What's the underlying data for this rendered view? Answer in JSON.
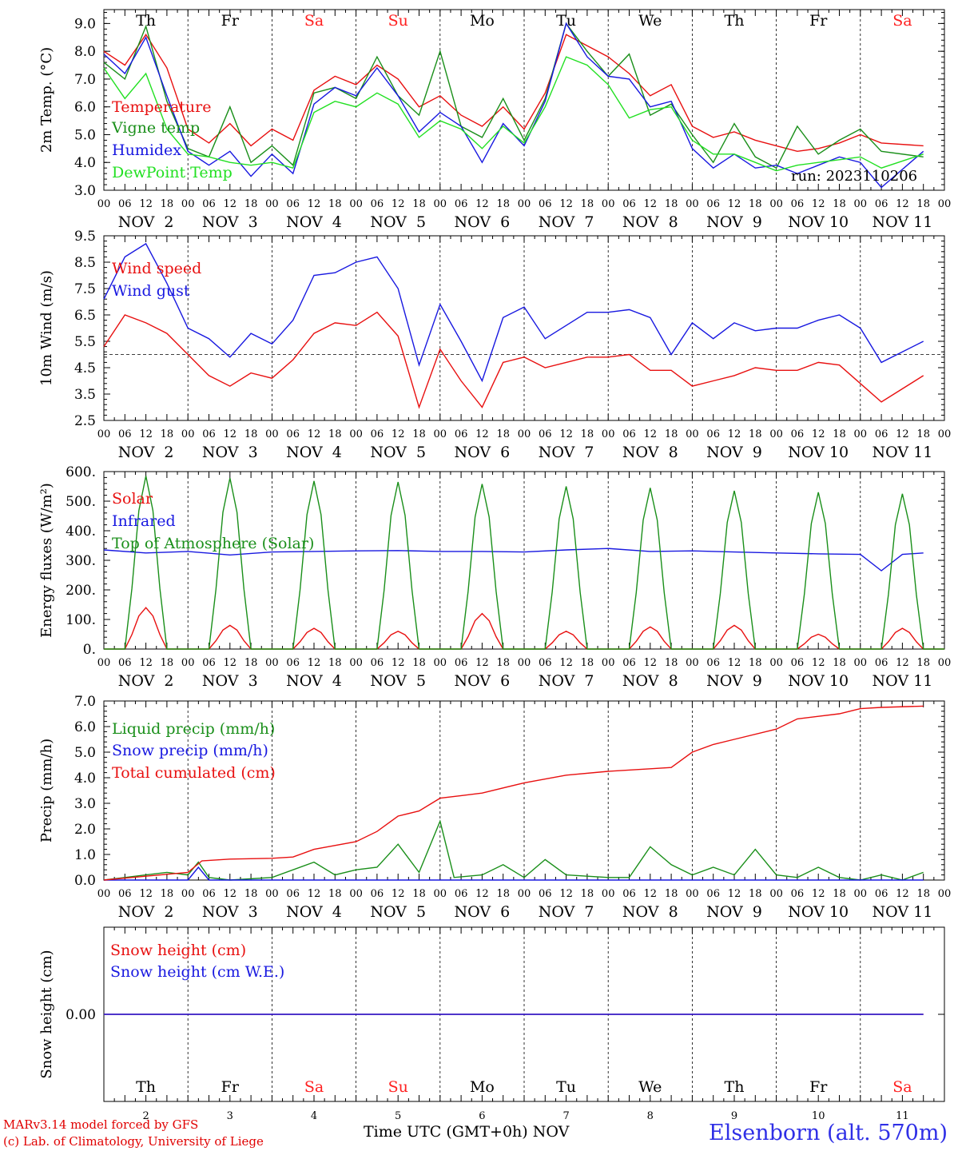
{
  "footer": {
    "model": "MARv3.14 model forced by GFS",
    "lab": "(c) Lab. of Climatology, University of Liege",
    "xlabel": "Time UTC (GMT+0h) NOV",
    "station": "Elsenborn (alt. 570m)"
  },
  "days": {
    "weekdays": [
      "Th",
      "Fr",
      "Sa",
      "Su",
      "Mo",
      "Tu",
      "We",
      "Th",
      "Fr",
      "Sa"
    ],
    "dates": [
      "NOV  2",
      "NOV  3",
      "NOV  4",
      "NOV  5",
      "NOV  6",
      "NOV  7",
      "NOV  8",
      "NOV  9",
      "NOV 10",
      "NOV 11"
    ],
    "daynums": [
      "2",
      "3",
      "4",
      "5",
      "6",
      "7",
      "8",
      "9",
      "10",
      "11"
    ],
    "weekend_color": "#ff2020",
    "hour_ticks": [
      "00",
      "06",
      "12",
      "18"
    ]
  },
  "colors": {
    "red": "#e81010",
    "green": "#1a8f1a",
    "blue": "#1818e0",
    "lightgreen": "#22e022",
    "purple": "#8030a0"
  },
  "chart_data": [
    {
      "type": "line",
      "ylabel": "2m Temp. (°C)",
      "ylim": [
        3.0,
        9.5
      ],
      "yticks": [
        "3.0",
        "4.0",
        "5.0",
        "6.0",
        "7.0",
        "8.0",
        "9.0"
      ],
      "annotation": "run: 2023110206",
      "x_unit": "hours since NOV 2 00 UTC",
      "series": [
        {
          "name": "Temperature",
          "color": "red",
          "x": [
            0,
            6,
            12,
            18,
            24,
            30,
            36,
            42,
            48,
            54,
            60,
            66,
            72,
            78,
            84,
            90,
            96,
            102,
            108,
            114,
            120,
            126,
            132,
            138,
            144,
            150,
            156,
            162,
            168,
            174,
            180,
            186,
            192,
            198,
            204,
            210,
            216,
            222,
            234
          ],
          "y": [
            8.0,
            7.5,
            8.6,
            7.4,
            5.2,
            4.7,
            5.4,
            4.6,
            5.2,
            4.8,
            6.6,
            7.1,
            6.8,
            7.5,
            7.0,
            6.0,
            6.4,
            5.7,
            5.3,
            6.0,
            5.2,
            6.5,
            8.6,
            8.2,
            7.8,
            7.2,
            6.4,
            6.8,
            5.3,
            4.9,
            5.1,
            4.8,
            4.6,
            4.4,
            4.5,
            4.7,
            5.0,
            4.7,
            4.6
          ]
        },
        {
          "name": "Vigne temp",
          "color": "green",
          "x": [
            0,
            6,
            12,
            18,
            24,
            30,
            36,
            42,
            48,
            54,
            60,
            66,
            72,
            78,
            84,
            90,
            96,
            102,
            108,
            114,
            120,
            126,
            132,
            138,
            144,
            150,
            156,
            162,
            168,
            174,
            180,
            186,
            192,
            198,
            204,
            210,
            216,
            222,
            234
          ],
          "y": [
            7.6,
            7.0,
            8.9,
            6.2,
            4.5,
            4.2,
            6.0,
            4.0,
            4.6,
            3.9,
            6.5,
            6.7,
            6.3,
            7.8,
            6.4,
            5.7,
            8.0,
            5.3,
            4.9,
            6.3,
            4.8,
            6.3,
            9.0,
            8.0,
            7.1,
            7.9,
            5.7,
            6.1,
            5.0,
            4.0,
            5.4,
            4.2,
            3.8,
            5.3,
            4.3,
            4.8,
            5.2,
            4.4,
            4.2
          ]
        },
        {
          "name": "Humidex",
          "color": "blue",
          "x": [
            0,
            6,
            12,
            18,
            24,
            30,
            36,
            42,
            48,
            54,
            60,
            66,
            72,
            78,
            84,
            90,
            96,
            102,
            108,
            114,
            120,
            126,
            132,
            138,
            144,
            150,
            156,
            162,
            168,
            174,
            180,
            186,
            192,
            198,
            204,
            210,
            216,
            222,
            234
          ],
          "y": [
            7.9,
            7.2,
            8.5,
            6.4,
            4.4,
            3.9,
            4.4,
            3.5,
            4.3,
            3.6,
            6.1,
            6.7,
            6.4,
            7.4,
            6.4,
            5.1,
            5.8,
            5.3,
            4.0,
            5.4,
            4.6,
            6.2,
            9.0,
            7.8,
            7.1,
            7.0,
            6.0,
            6.2,
            4.5,
            3.8,
            4.3,
            3.8,
            3.9,
            3.6,
            3.9,
            4.2,
            4.0,
            3.1,
            4.4
          ]
        },
        {
          "name": "DewPoint Temp",
          "color": "lightgreen",
          "x": [
            0,
            6,
            12,
            18,
            24,
            30,
            36,
            42,
            48,
            54,
            60,
            66,
            72,
            78,
            84,
            90,
            96,
            102,
            108,
            114,
            120,
            126,
            132,
            138,
            144,
            150,
            156,
            162,
            168,
            174,
            180,
            186,
            192,
            198,
            204,
            210,
            216,
            222,
            234
          ],
          "y": [
            7.4,
            6.3,
            7.2,
            5.2,
            4.3,
            4.2,
            4.0,
            3.9,
            4.0,
            3.8,
            5.8,
            6.2,
            6.0,
            6.5,
            6.1,
            4.9,
            5.5,
            5.2,
            4.5,
            5.3,
            4.7,
            6.0,
            7.8,
            7.5,
            6.8,
            5.6,
            5.9,
            6.0,
            4.8,
            4.3,
            4.3,
            4.0,
            3.7,
            3.9,
            4.0,
            4.1,
            4.2,
            3.8,
            4.3
          ]
        }
      ]
    },
    {
      "type": "line",
      "ylabel": "10m Wind (m/s)",
      "ylim": [
        2.5,
        9.5
      ],
      "yticks": [
        "2.5",
        "3.5",
        "4.5",
        "5.5",
        "6.5",
        "7.5",
        "8.5",
        "9.5"
      ],
      "reference_line": 5.0,
      "series": [
        {
          "name": "Wind speed",
          "color": "red",
          "x": [
            0,
            6,
            12,
            18,
            24,
            30,
            36,
            42,
            48,
            54,
            60,
            66,
            72,
            78,
            84,
            90,
            96,
            102,
            108,
            114,
            120,
            126,
            132,
            138,
            144,
            150,
            156,
            162,
            168,
            174,
            180,
            186,
            192,
            198,
            204,
            210,
            216,
            222,
            234
          ],
          "y": [
            5.3,
            6.5,
            6.2,
            5.8,
            5.0,
            4.2,
            3.8,
            4.3,
            4.1,
            4.8,
            5.8,
            6.2,
            6.1,
            6.6,
            5.7,
            3.0,
            5.2,
            4.0,
            3.0,
            4.7,
            4.9,
            4.5,
            4.7,
            4.9,
            4.9,
            5.0,
            4.4,
            4.4,
            3.8,
            4.0,
            4.2,
            4.5,
            4.4,
            4.4,
            4.7,
            4.6,
            3.9,
            3.2,
            4.2
          ]
        },
        {
          "name": "Wind gust",
          "color": "blue",
          "x": [
            0,
            6,
            12,
            18,
            24,
            30,
            36,
            42,
            48,
            54,
            60,
            66,
            72,
            78,
            84,
            90,
            96,
            102,
            108,
            114,
            120,
            126,
            132,
            138,
            144,
            150,
            156,
            162,
            168,
            174,
            180,
            186,
            192,
            198,
            204,
            210,
            216,
            222,
            234
          ],
          "y": [
            7.1,
            8.7,
            9.2,
            7.7,
            6.0,
            5.6,
            4.9,
            5.8,
            5.4,
            6.3,
            8.0,
            8.1,
            8.5,
            8.7,
            7.5,
            4.6,
            6.9,
            5.5,
            4.0,
            6.4,
            6.8,
            5.6,
            6.1,
            6.6,
            6.6,
            6.7,
            6.4,
            5.0,
            6.2,
            5.6,
            6.2,
            5.9,
            6.0,
            6.0,
            6.3,
            6.5,
            6.0,
            4.7,
            5.5
          ]
        }
      ]
    },
    {
      "type": "line",
      "ylabel": "Energy fluxes (W/m²)",
      "ylim": [
        0,
        600
      ],
      "yticks": [
        "0.",
        "100.",
        "200.",
        "300.",
        "400.",
        "500.",
        "600."
      ],
      "series": [
        {
          "name": "Solar",
          "color": "red",
          "daily_peak": [
            140,
            80,
            70,
            60,
            120,
            60,
            75,
            80,
            50,
            70
          ]
        },
        {
          "name": "Infrared",
          "color": "blue",
          "x": [
            0,
            12,
            24,
            36,
            48,
            60,
            72,
            84,
            96,
            108,
            120,
            132,
            144,
            156,
            168,
            180,
            192,
            204,
            216,
            222,
            228,
            234
          ],
          "y": [
            335,
            325,
            330,
            318,
            328,
            330,
            332,
            333,
            330,
            330,
            328,
            335,
            340,
            330,
            332,
            328,
            325,
            322,
            320,
            265,
            320,
            325
          ]
        },
        {
          "name": "Top of Atmosphere (Solar)",
          "color": "green",
          "daily_peak": [
            585,
            578,
            568,
            565,
            558,
            550,
            545,
            535,
            530,
            525
          ]
        }
      ]
    },
    {
      "type": "line",
      "ylabel": "Precip (mm/h)",
      "ylim": [
        0,
        7
      ],
      "yticks": [
        "0.0",
        "1.0",
        "2.0",
        "3.0",
        "4.0",
        "5.0",
        "6.0",
        "7.0"
      ],
      "series": [
        {
          "name": "Liquid precip (mm/h)",
          "color": "green",
          "x": [
            0,
            6,
            12,
            18,
            24,
            27,
            30,
            36,
            48,
            60,
            66,
            72,
            78,
            84,
            90,
            96,
            100,
            108,
            114,
            120,
            126,
            132,
            144,
            150,
            156,
            162,
            168,
            174,
            180,
            186,
            192,
            198,
            204,
            210,
            216,
            222,
            228,
            234
          ],
          "y": [
            0.0,
            0.1,
            0.2,
            0.3,
            0.2,
            0.7,
            0.1,
            0.0,
            0.1,
            0.7,
            0.2,
            0.4,
            0.5,
            1.4,
            0.3,
            2.3,
            0.1,
            0.2,
            0.6,
            0.1,
            0.8,
            0.2,
            0.1,
            0.1,
            1.3,
            0.6,
            0.2,
            0.5,
            0.2,
            1.2,
            0.2,
            0.1,
            0.5,
            0.1,
            0.0,
            0.2,
            0.0,
            0.3
          ]
        },
        {
          "name": "Snow precip (mm/h)",
          "color": "blue",
          "x": [
            0,
            24,
            27,
            30,
            234
          ],
          "y": [
            0,
            0,
            0.5,
            0,
            0
          ]
        },
        {
          "name": "Total cumulated (cm)",
          "color": "red",
          "x": [
            0,
            12,
            24,
            28,
            36,
            48,
            54,
            60,
            72,
            78,
            84,
            90,
            96,
            102,
            108,
            120,
            132,
            144,
            156,
            162,
            168,
            174,
            180,
            192,
            198,
            204,
            210,
            216,
            222,
            234
          ],
          "y": [
            0.0,
            0.15,
            0.3,
            0.75,
            0.82,
            0.85,
            0.9,
            1.2,
            1.5,
            1.9,
            2.5,
            2.7,
            3.2,
            3.3,
            3.4,
            3.8,
            4.1,
            4.25,
            4.35,
            4.4,
            5.0,
            5.3,
            5.5,
            5.9,
            6.3,
            6.4,
            6.5,
            6.7,
            6.75,
            6.8
          ]
        }
      ]
    },
    {
      "type": "line",
      "ylabel": "Snow height (cm)",
      "ylim": [
        -1,
        1
      ],
      "yticks": [
        "0.00"
      ],
      "series": [
        {
          "name": "Snow height (cm)",
          "color": "red",
          "x": [
            0,
            234
          ],
          "y": [
            0,
            0
          ]
        },
        {
          "name": "Snow height (cm W.E.)",
          "color": "blue",
          "x": [
            0,
            234
          ],
          "y": [
            0,
            0
          ]
        }
      ]
    }
  ]
}
